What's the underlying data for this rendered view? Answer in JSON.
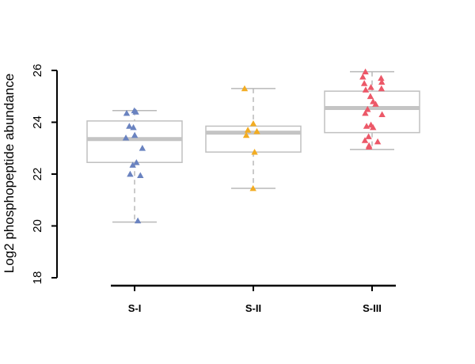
{
  "chart_data": {
    "type": "box",
    "title": "",
    "xlabel": "",
    "ylabel": "Log2 phosphopeptide abundance",
    "ylim": [
      18,
      26
    ],
    "yticks": [
      "18",
      "20",
      "22",
      "24",
      "26"
    ],
    "categories": [
      "S-I",
      "S-II",
      "S-III"
    ],
    "grid": false,
    "box_color": "#c0c0c0",
    "whisker_color": "#b8b8b8",
    "median_color": "#c4c4c4",
    "axis_color": "#000000",
    "marker": "triangle",
    "groups": [
      {
        "name": "S-I",
        "color": "#6a83c0",
        "whisker_low": 20.15,
        "q1": 22.45,
        "median": 23.35,
        "q3": 24.05,
        "whisker_high": 24.45,
        "points": [
          24.45,
          24.4,
          24.35,
          23.85,
          23.8,
          23.5,
          23.4,
          23.0,
          22.45,
          22.35,
          22.0,
          21.95,
          20.2
        ]
      },
      {
        "name": "S-II",
        "color": "#f2ac22",
        "whisker_low": 21.45,
        "q1": 22.85,
        "median": 23.6,
        "q3": 23.85,
        "whisker_high": 25.3,
        "points": [
          25.3,
          23.95,
          23.7,
          23.65,
          23.5,
          22.85,
          21.45
        ]
      },
      {
        "name": "S-III",
        "color": "#ec5868",
        "whisker_low": 22.95,
        "q1": 23.6,
        "median": 24.55,
        "q3": 25.2,
        "whisker_high": 25.95,
        "points": [
          25.95,
          25.75,
          25.7,
          25.55,
          25.5,
          25.35,
          25.3,
          25.25,
          25.0,
          24.8,
          24.7,
          24.5,
          24.35,
          24.3,
          23.9,
          23.85,
          23.8,
          23.45,
          23.3,
          23.25,
          23.1,
          23.05
        ]
      }
    ]
  }
}
